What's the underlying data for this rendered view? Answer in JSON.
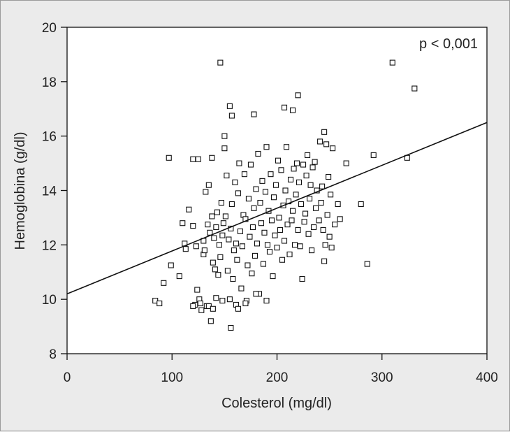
{
  "chart_data": {
    "type": "scatter",
    "xlabel": "Colesterol (mg/dl)",
    "ylabel": "Hemoglobina (g/dl)",
    "xlim": [
      0,
      400
    ],
    "ylim": [
      8,
      20
    ],
    "xticks": [
      0,
      100,
      200,
      300,
      400
    ],
    "yticks": [
      8,
      10,
      12,
      14,
      16,
      18,
      20
    ],
    "annotation": "p < 0,001",
    "grid": false,
    "marker": "open-square",
    "colors": {
      "background": "#ebebeb",
      "plot_area": "#ffffff",
      "ink": "#111111"
    },
    "regression_line": {
      "x": [
        0,
        400
      ],
      "y": [
        10.2,
        16.5
      ]
    },
    "points": [
      [
        84,
        9.95
      ],
      [
        88,
        9.85
      ],
      [
        92,
        10.6
      ],
      [
        97,
        15.2
      ],
      [
        99,
        11.25
      ],
      [
        107,
        10.85
      ],
      [
        110,
        12.8
      ],
      [
        112,
        12.05
      ],
      [
        113,
        11.85
      ],
      [
        116,
        13.3
      ],
      [
        120,
        12.7
      ],
      [
        120,
        15.15
      ],
      [
        122,
        9.8
      ],
      [
        123,
        11.95
      ],
      [
        124,
        10.35
      ],
      [
        125,
        15.15
      ],
      [
        126,
        10.0
      ],
      [
        127,
        9.85
      ],
      [
        128,
        9.6
      ],
      [
        130,
        12.15
      ],
      [
        130,
        11.65
      ],
      [
        131,
        11.8
      ],
      [
        132,
        13.95
      ],
      [
        133,
        9.75
      ],
      [
        134,
        12.75
      ],
      [
        135,
        14.2
      ],
      [
        136,
        12.45
      ],
      [
        137,
        9.2
      ],
      [
        138,
        15.2
      ],
      [
        138,
        13.05
      ],
      [
        139,
        11.35
      ],
      [
        140,
        12.25
      ],
      [
        141,
        11.1
      ],
      [
        142,
        12.65
      ],
      [
        143,
        13.2
      ],
      [
        144,
        10.9
      ],
      [
        145,
        12.0
      ],
      [
        146,
        11.55
      ],
      [
        147,
        13.55
      ],
      [
        148,
        12.35
      ],
      [
        149,
        12.8
      ],
      [
        150,
        15.55
      ],
      [
        150,
        16.0
      ],
      [
        151,
        13.05
      ],
      [
        152,
        14.55
      ],
      [
        153,
        11.05
      ],
      [
        154,
        12.2
      ],
      [
        155,
        10.0
      ],
      [
        156,
        12.6
      ],
      [
        157,
        13.5
      ],
      [
        158,
        10.75
      ],
      [
        159,
        11.8
      ],
      [
        160,
        14.3
      ],
      [
        161,
        12.05
      ],
      [
        162,
        11.45
      ],
      [
        163,
        13.9
      ],
      [
        164,
        15.0
      ],
      [
        165,
        12.5
      ],
      [
        166,
        10.4
      ],
      [
        167,
        11.95
      ],
      [
        168,
        13.1
      ],
      [
        169,
        14.6
      ],
      [
        170,
        12.95
      ],
      [
        171,
        9.95
      ],
      [
        172,
        11.25
      ],
      [
        173,
        13.7
      ],
      [
        174,
        12.3
      ],
      [
        175,
        14.95
      ],
      [
        176,
        10.95
      ],
      [
        177,
        12.65
      ],
      [
        178,
        13.35
      ],
      [
        179,
        11.6
      ],
      [
        180,
        14.05
      ],
      [
        181,
        12.05
      ],
      [
        182,
        15.35
      ],
      [
        183,
        10.2
      ],
      [
        184,
        13.55
      ],
      [
        185,
        12.8
      ],
      [
        186,
        14.35
      ],
      [
        187,
        11.3
      ],
      [
        188,
        12.45
      ],
      [
        189,
        13.95
      ],
      [
        190,
        15.6
      ],
      [
        191,
        12.0
      ],
      [
        192,
        13.25
      ],
      [
        193,
        11.75
      ],
      [
        194,
        14.6
      ],
      [
        195,
        12.9
      ],
      [
        196,
        10.85
      ],
      [
        197,
        13.75
      ],
      [
        198,
        12.35
      ],
      [
        199,
        14.2
      ],
      [
        200,
        11.9
      ],
      [
        201,
        15.1
      ],
      [
        202,
        13.0
      ],
      [
        203,
        12.55
      ],
      [
        204,
        14.75
      ],
      [
        205,
        11.45
      ],
      [
        206,
        13.45
      ],
      [
        207,
        12.15
      ],
      [
        208,
        14.0
      ],
      [
        209,
        15.6
      ],
      [
        210,
        12.75
      ],
      [
        211,
        13.6
      ],
      [
        212,
        11.65
      ],
      [
        213,
        14.4
      ],
      [
        214,
        12.9
      ],
      [
        215,
        13.25
      ],
      [
        216,
        14.8
      ],
      [
        217,
        12.0
      ],
      [
        218,
        13.85
      ],
      [
        219,
        15.0
      ],
      [
        220,
        12.55
      ],
      [
        221,
        14.3
      ],
      [
        222,
        11.95
      ],
      [
        223,
        13.5
      ],
      [
        224,
        10.75
      ],
      [
        225,
        14.95
      ],
      [
        226,
        12.85
      ],
      [
        227,
        13.15
      ],
      [
        228,
        14.55
      ],
      [
        229,
        15.3
      ],
      [
        230,
        12.4
      ],
      [
        231,
        13.7
      ],
      [
        232,
        14.2
      ],
      [
        233,
        11.8
      ],
      [
        234,
        14.85
      ],
      [
        235,
        12.65
      ],
      [
        236,
        15.05
      ],
      [
        237,
        13.35
      ],
      [
        238,
        14.0
      ],
      [
        240,
        12.9
      ],
      [
        241,
        15.8
      ],
      [
        242,
        13.55
      ],
      [
        243,
        14.15
      ],
      [
        244,
        12.55
      ],
      [
        245,
        11.4
      ],
      [
        246,
        12.0
      ],
      [
        247,
        15.7
      ],
      [
        248,
        13.1
      ],
      [
        249,
        14.5
      ],
      [
        250,
        12.3
      ],
      [
        251,
        13.85
      ],
      [
        252,
        11.9
      ],
      [
        253,
        15.55
      ],
      [
        255,
        12.75
      ],
      [
        258,
        13.5
      ],
      [
        260,
        12.95
      ],
      [
        266,
        15.0
      ],
      [
        280,
        13.5
      ],
      [
        286,
        11.3
      ],
      [
        292,
        15.3
      ],
      [
        324,
        15.2
      ],
      [
        146,
        18.7
      ],
      [
        155,
        17.1
      ],
      [
        157,
        16.75
      ],
      [
        178,
        16.8
      ],
      [
        207,
        17.05
      ],
      [
        215,
        16.95
      ],
      [
        220,
        17.5
      ],
      [
        245,
        16.15
      ],
      [
        310,
        18.7
      ],
      [
        331,
        17.75
      ],
      [
        135,
        9.75
      ],
      [
        139,
        9.65
      ],
      [
        156,
        8.95
      ],
      [
        161,
        9.8
      ],
      [
        163,
        9.65
      ],
      [
        170,
        9.85
      ],
      [
        180,
        10.2
      ],
      [
        190,
        9.95
      ],
      [
        120,
        9.75
      ],
      [
        142,
        10.05
      ],
      [
        148,
        9.95
      ]
    ]
  }
}
